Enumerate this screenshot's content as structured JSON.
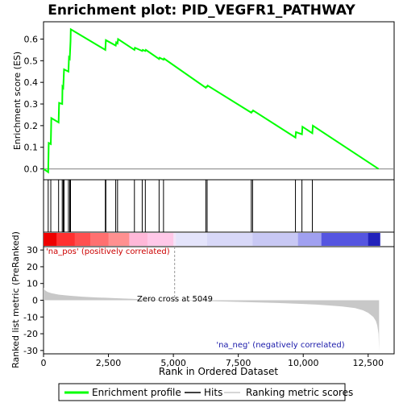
{
  "chart_data": [
    {
      "type": "line",
      "title": "Enrichment plot: PID_VEGFR1_PATHWAY",
      "ylabel": "Enrichment score (ES)",
      "xlim": [
        0,
        13500
      ],
      "ylim": [
        -0.05,
        0.68
      ],
      "y_ticks": [
        "0.0",
        "0.1",
        "0.2",
        "0.3",
        "0.4",
        "0.5",
        "0.6"
      ],
      "series": [
        {
          "name": "Enrichment profile",
          "color": "#00ff00",
          "x": [
            0,
            180,
            200,
            280,
            300,
            580,
            600,
            720,
            730,
            760,
            790,
            960,
            980,
            1010,
            1040,
            1050,
            2380,
            2400,
            2780,
            2800,
            2850,
            2870,
            3500,
            3520,
            3800,
            3820,
            3920,
            3940,
            4450,
            4470,
            4620,
            4640,
            6250,
            6270,
            6300,
            6320,
            8000,
            8020,
            8050,
            8070,
            9700,
            9720,
            9950,
            9970,
            10350,
            10370,
            12900
          ],
          "y": [
            0.0,
            -0.015,
            0.12,
            0.115,
            0.235,
            0.215,
            0.305,
            0.3,
            0.38,
            0.375,
            0.46,
            0.45,
            0.515,
            0.51,
            0.59,
            0.645,
            0.55,
            0.595,
            0.57,
            0.585,
            0.58,
            0.6,
            0.55,
            0.56,
            0.545,
            0.55,
            0.545,
            0.55,
            0.508,
            0.514,
            0.505,
            0.51,
            0.375,
            0.38,
            0.38,
            0.385,
            0.26,
            0.265,
            0.265,
            0.27,
            0.145,
            0.17,
            0.16,
            0.195,
            0.165,
            0.2,
            0.0
          ]
        }
      ]
    },
    {
      "type": "scatter",
      "name": "Hits",
      "color": "#000000",
      "x": [
        180,
        280,
        580,
        720,
        760,
        790,
        960,
        1010,
        1040,
        2380,
        2400,
        2780,
        2850,
        3500,
        3800,
        3920,
        4450,
        4620,
        6250,
        6300,
        8000,
        8050,
        9700,
        9950,
        10350
      ]
    },
    {
      "type": "heatmap",
      "name": "ranked list color bar",
      "stops": [
        {
          "x": 0,
          "color": "#ee0000"
        },
        {
          "x": 500,
          "color": "#ff3030"
        },
        {
          "x": 1200,
          "color": "#ff5050"
        },
        {
          "x": 1800,
          "color": "#ff7070"
        },
        {
          "x": 2500,
          "color": "#ff9090"
        },
        {
          "x": 3300,
          "color": "#ffb8d8"
        },
        {
          "x": 4000,
          "color": "#ffc8e8"
        },
        {
          "x": 5000,
          "color": "#f4e4f8"
        },
        {
          "x": 5100,
          "color": "#e4e4fb"
        },
        {
          "x": 6300,
          "color": "#d8d8f8"
        },
        {
          "x": 8050,
          "color": "#c8c8f4"
        },
        {
          "x": 9800,
          "color": "#a0a0f0"
        },
        {
          "x": 10700,
          "color": "#5555e0"
        },
        {
          "x": 12500,
          "color": "#2222bb"
        },
        {
          "x": 12950,
          "color": "#2222bb"
        }
      ]
    },
    {
      "type": "area",
      "xlabel": "Rank in Ordered Dataset",
      "ylabel": "Ranked list metric (PreRanked)",
      "xlim": [
        0,
        13500
      ],
      "ylim": [
        -32,
        32
      ],
      "x_ticks": [
        "0",
        "2,500",
        "5,000",
        "7,500",
        "10,000",
        "12,500"
      ],
      "y_ticks": [
        "-30",
        "-20",
        "-10",
        "0",
        "10",
        "20",
        "30"
      ],
      "series": [
        {
          "name": "Ranking metric scores",
          "color": "#c8c8c8",
          "x": [
            0,
            50,
            150,
            300,
            600,
            1000,
            1500,
            2000,
            3000,
            4000,
            5049,
            6000,
            7000,
            8000,
            9000,
            10000,
            10500,
            11000,
            11500,
            12000,
            12300,
            12500,
            12700,
            12800,
            12850,
            12900,
            12920
          ],
          "y": [
            7.5,
            6.0,
            5.0,
            4.2,
            3.3,
            2.7,
            2.1,
            1.7,
            1.1,
            0.5,
            0.0,
            -0.4,
            -0.8,
            -1.2,
            -1.6,
            -2.2,
            -2.6,
            -3.1,
            -3.7,
            -4.7,
            -6.0,
            -7.5,
            -10.0,
            -12.5,
            -15.0,
            -20.0,
            -30.0
          ]
        }
      ],
      "annotations": [
        "'na_pos' (positively correlated)",
        "Zero cross at 5049",
        "'na_neg' (negatively correlated)"
      ]
    }
  ],
  "legend": [
    {
      "label": "Enrichment profile",
      "color": "#00ff00"
    },
    {
      "label": "Hits",
      "color": "#000000"
    },
    {
      "label": "Ranking metric scores",
      "color": "#c8c8c8"
    }
  ]
}
